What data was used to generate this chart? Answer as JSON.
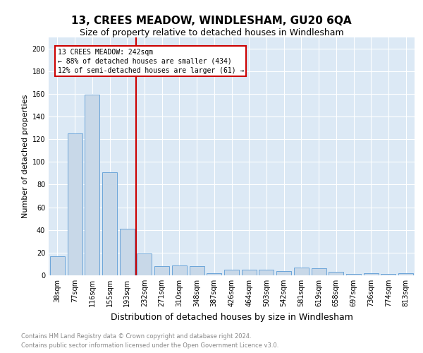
{
  "title": "13, CREES MEADOW, WINDLESHAM, GU20 6QA",
  "subtitle": "Size of property relative to detached houses in Windlesham",
  "xlabel": "Distribution of detached houses by size in Windlesham",
  "ylabel": "Number of detached properties",
  "categories": [
    "38sqm",
    "77sqm",
    "116sqm",
    "155sqm",
    "193sqm",
    "232sqm",
    "271sqm",
    "310sqm",
    "348sqm",
    "387sqm",
    "426sqm",
    "464sqm",
    "503sqm",
    "542sqm",
    "581sqm",
    "619sqm",
    "658sqm",
    "697sqm",
    "736sqm",
    "774sqm",
    "813sqm"
  ],
  "values": [
    17,
    125,
    159,
    91,
    41,
    19,
    8,
    9,
    8,
    2,
    5,
    5,
    5,
    4,
    7,
    6,
    3,
    1,
    2,
    1,
    2
  ],
  "bar_color": "#c8d8e8",
  "bar_edge_color": "#5b9bd5",
  "vline_x_index": 4.5,
  "annotation_text_line1": "13 CREES MEADOW: 242sqm",
  "annotation_text_line2": "← 88% of detached houses are smaller (434)",
  "annotation_text_line3": "12% of semi-detached houses are larger (61) →",
  "annotation_box_color": "#ffffff",
  "annotation_box_edge_color": "#cc0000",
  "vline_color": "#cc0000",
  "ylim": [
    0,
    210
  ],
  "yticks": [
    0,
    20,
    40,
    60,
    80,
    100,
    120,
    140,
    160,
    180,
    200
  ],
  "grid_color": "#ffffff",
  "bg_color": "#dce9f5",
  "footnote1": "Contains HM Land Registry data © Crown copyright and database right 2024.",
  "footnote2": "Contains public sector information licensed under the Open Government Licence v3.0.",
  "title_fontsize": 11,
  "subtitle_fontsize": 9,
  "xlabel_fontsize": 9,
  "ylabel_fontsize": 8,
  "tick_fontsize": 7,
  "annot_fontsize": 7
}
